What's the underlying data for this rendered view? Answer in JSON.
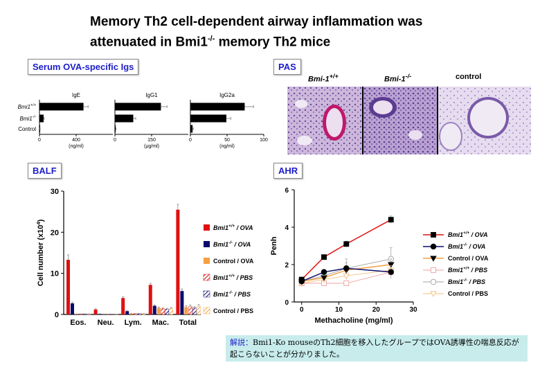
{
  "title_line1": "Memory Th2 cell-dependent airway inflammation was",
  "title_line2_pre": "attenuated in Bmi1",
  "title_line2_sup": "-/-",
  "title_line2_post": " memory Th2 mice",
  "panels": {
    "serum": "Serum OVA-specific Igs",
    "pas": "PAS",
    "balf": "BALF",
    "ahr": "AHR"
  },
  "pas_labels": {
    "wt": "Bmi-1",
    "wt_sup": "+/+",
    "ko": "Bmi-1",
    "ko_sup": "-/-",
    "ctrl": "control"
  },
  "note": {
    "key": "解説：",
    "text": "Bmi1-Ko mouseのTh2細胞を移入したグループではOVA誘導性の喘息反応が起こらないことが分かりました。"
  },
  "colors": {
    "black": "#000000",
    "navy": "#0a0a6e",
    "red": "#e01010",
    "orange": "#f5a040",
    "grey": "#999999",
    "lightgrey": "#bbbbbb"
  },
  "chart_data": [
    {
      "type": "bar",
      "orientation": "horizontal",
      "groups": [
        "Bmi1+/+",
        "Bmi1-/-",
        "Control"
      ],
      "group_labels": [
        {
          "text": "Bmi1",
          "sup": "+/+"
        },
        {
          "text": "Bmi1",
          "sup": "-/-"
        },
        {
          "text": "Control",
          "sup": ""
        }
      ],
      "subplots": [
        {
          "name": "IgE",
          "unit": "(ng/ml)",
          "xlim": [
            0,
            800
          ],
          "ticks": [
            0,
            400
          ],
          "values": [
            480,
            45,
            5
          ],
          "errors": [
            50,
            8,
            2
          ]
        },
        {
          "name": "IgG1",
          "unit": "(μg/ml)",
          "xlim": [
            0,
            300
          ],
          "ticks": [
            0,
            150
          ],
          "values": [
            188,
            75,
            3
          ],
          "errors": [
            25,
            10,
            2
          ]
        },
        {
          "name": "IgG2a",
          "unit": "(ng/ml)",
          "xlim": [
            0,
            100
          ],
          "ticks": [
            0,
            50,
            100
          ],
          "values": [
            74,
            49,
            3
          ],
          "errors": [
            12,
            6,
            1
          ]
        }
      ]
    },
    {
      "type": "bar",
      "ylabel": "Cell number (x10",
      "ylabel_sup": "4",
      "ylabel_post": ")",
      "ylim": [
        0,
        30
      ],
      "yticks": [
        0,
        10,
        20,
        30
      ],
      "categories": [
        "Eos.",
        "Neu.",
        "Lym.",
        "Mac.",
        "Total"
      ],
      "series": [
        {
          "name": "Bmi1 +/+ / OVA",
          "label": "Bmi1",
          "sup": "+/+",
          "post": " / OVA",
          "color": "#e01010",
          "pattern": "solid",
          "values": [
            13.3,
            1.2,
            4.0,
            7.2,
            25.5
          ],
          "errors": [
            1.2,
            0.2,
            0.3,
            0.4,
            1.3
          ]
        },
        {
          "name": "Bmi1 -/- / OVA",
          "label": "Bmi1",
          "sup": "-/-",
          "post": " / OVA",
          "color": "#0a0a6e",
          "pattern": "solid",
          "values": [
            2.7,
            0.1,
            0.8,
            2.1,
            5.7
          ],
          "errors": [
            0.3,
            0.05,
            0.1,
            0.2,
            0.5
          ]
        },
        {
          "name": "Control / OVA",
          "label": "Control / OVA",
          "sup": "",
          "post": "",
          "color": "#f5a040",
          "pattern": "solid",
          "values": [
            0.1,
            0.05,
            0.2,
            1.6,
            1.8
          ],
          "errors": [
            0.05,
            0.02,
            0.05,
            0.2,
            0.3
          ]
        },
        {
          "name": "Bmi1 +/+ / PBS",
          "label": "Bmi1",
          "sup": "+/+",
          "post": " / PBS",
          "color": "#e01010",
          "pattern": "hatch",
          "values": [
            0.1,
            0.05,
            0.2,
            1.4,
            1.9
          ],
          "errors": [
            0.05,
            0.02,
            0.05,
            0.2,
            0.4
          ]
        },
        {
          "name": "Bmi1 -/- / PBS",
          "label": "Bmi1",
          "sup": "-/-",
          "post": " / PBS",
          "color": "#0a0a6e",
          "pattern": "hatch",
          "values": [
            0.1,
            0.05,
            0.2,
            1.3,
            1.6
          ],
          "errors": [
            0.05,
            0.02,
            0.05,
            0.2,
            0.3
          ]
        },
        {
          "name": "Control / PBS",
          "label": "Control / PBS",
          "sup": "",
          "post": "",
          "color": "#f5a040",
          "pattern": "hatch",
          "values": [
            0.1,
            0.05,
            0.2,
            1.5,
            2.0
          ],
          "errors": [
            0.05,
            0.02,
            0.05,
            0.2,
            0.4
          ]
        }
      ]
    },
    {
      "type": "line",
      "xlabel": "Methacholine (mg/ml)",
      "ylabel": "Penh",
      "xlim": [
        -2,
        30
      ],
      "ylim": [
        0,
        6
      ],
      "xticks": [
        0,
        10,
        20,
        30
      ],
      "yticks": [
        0,
        2,
        4,
        6
      ],
      "x": [
        0,
        6,
        12,
        24
      ],
      "series": [
        {
          "name": "Bmi1+/+ / OVA",
          "label": "Bmi1",
          "sup": "+/+",
          "post": " / OVA",
          "color": "#e01010",
          "marker": "square-filled",
          "values": [
            1.2,
            2.4,
            3.1,
            4.4
          ],
          "errors": [
            0.1,
            0.1,
            0.15,
            0.2
          ]
        },
        {
          "name": "Bmi1-/- / OVA",
          "label": "Bmi1",
          "sup": "-/-",
          "post": " / OVA",
          "color": "#0a0a6e",
          "marker": "circle-filled",
          "values": [
            1.1,
            1.6,
            1.8,
            1.6
          ],
          "errors": [
            0.1,
            0.1,
            0.3,
            0.35
          ]
        },
        {
          "name": "Control / OVA",
          "label": "Control / OVA",
          "sup": "",
          "post": "",
          "color": "#f5a040",
          "marker": "triangle-filled",
          "values": [
            1.1,
            1.3,
            1.7,
            2.0
          ],
          "errors": [
            0.1,
            0.1,
            0.2,
            0.3
          ]
        },
        {
          "name": "Bmi1+/+ / PBS",
          "label": "Bmi1",
          "sup": "+/+",
          "post": " / PBS",
          "color": "#f0a0a0",
          "marker": "square-open",
          "values": [
            1.0,
            1.0,
            1.0,
            1.6
          ],
          "errors": [
            0.05,
            0.05,
            0.1,
            0.2
          ]
        },
        {
          "name": "Bmi1-/- / PBS",
          "label": "Bmi1",
          "sup": "-/-",
          "post": " / PBS",
          "color": "#a0a0a0",
          "marker": "circle-open",
          "values": [
            1.1,
            1.4,
            1.8,
            2.3
          ],
          "errors": [
            0.1,
            0.15,
            0.5,
            0.6
          ]
        },
        {
          "name": "Control / PBS",
          "label": "Control / PBS",
          "sup": "",
          "post": "",
          "color": "#f5c080",
          "marker": "triangle-open",
          "values": [
            1.0,
            1.2,
            1.4,
            1.7
          ],
          "errors": [
            0.05,
            0.1,
            0.2,
            0.3
          ]
        }
      ]
    }
  ]
}
